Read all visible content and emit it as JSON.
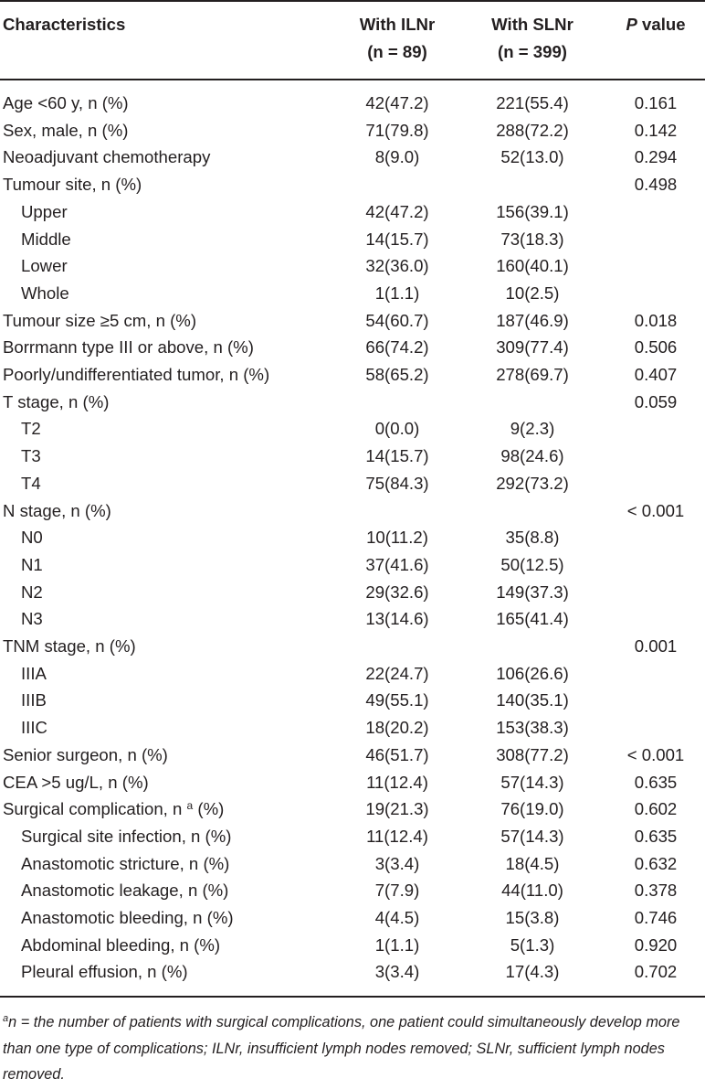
{
  "table": {
    "headers": {
      "characteristics": "Characteristics",
      "group_a_line1": "With ILNr",
      "group_a_line2": "(n = 89)",
      "group_b_line1": "With SLNr",
      "group_b_line2": "(n = 399)",
      "p_italic": "P",
      "p_rest": " value"
    },
    "rows": [
      {
        "label": "Age <60 y, n (%)",
        "indent": false,
        "a": "42(47.2)",
        "b": "221(55.4)",
        "p": "0.161"
      },
      {
        "label": "Sex, male, n (%)",
        "indent": false,
        "a": "71(79.8)",
        "b": "288(72.2)",
        "p": "0.142"
      },
      {
        "label": "Neoadjuvant chemotherapy",
        "indent": false,
        "a": "8(9.0)",
        "b": "52(13.0)",
        "p": "0.294"
      },
      {
        "label": "Tumour site, n (%)",
        "indent": false,
        "a": "",
        "b": "",
        "p": "0.498"
      },
      {
        "label": "Upper",
        "indent": true,
        "a": "42(47.2)",
        "b": "156(39.1)",
        "p": ""
      },
      {
        "label": "Middle",
        "indent": true,
        "a": "14(15.7)",
        "b": "73(18.3)",
        "p": ""
      },
      {
        "label": "Lower",
        "indent": true,
        "a": "32(36.0)",
        "b": "160(40.1)",
        "p": ""
      },
      {
        "label": "Whole",
        "indent": true,
        "a": "1(1.1)",
        "b": "10(2.5)",
        "p": ""
      },
      {
        "label": "Tumour size ≥5 cm, n (%)",
        "indent": false,
        "a": "54(60.7)",
        "b": "187(46.9)",
        "p": "0.018"
      },
      {
        "label": "Borrmann type III or above, n (%)",
        "indent": false,
        "a": "66(74.2)",
        "b": "309(77.4)",
        "p": "0.506"
      },
      {
        "label": "Poorly/undifferentiated tumor, n (%)",
        "indent": false,
        "a": "58(65.2)",
        "b": "278(69.7)",
        "p": "0.407"
      },
      {
        "label": "T stage, n (%)",
        "indent": false,
        "a": "",
        "b": "",
        "p": "0.059"
      },
      {
        "label": "T2",
        "indent": true,
        "a": "0(0.0)",
        "b": "9(2.3)",
        "p": ""
      },
      {
        "label": "T3",
        "indent": true,
        "a": "14(15.7)",
        "b": "98(24.6)",
        "p": ""
      },
      {
        "label": "T4",
        "indent": true,
        "a": "75(84.3)",
        "b": "292(73.2)",
        "p": ""
      },
      {
        "label": "N stage, n (%)",
        "indent": false,
        "a": "",
        "b": "",
        "p": "< 0.001"
      },
      {
        "label": "N0",
        "indent": true,
        "a": "10(11.2)",
        "b": "35(8.8)",
        "p": ""
      },
      {
        "label": "N1",
        "indent": true,
        "a": "37(41.6)",
        "b": "50(12.5)",
        "p": ""
      },
      {
        "label": "N2",
        "indent": true,
        "a": "29(32.6)",
        "b": "149(37.3)",
        "p": ""
      },
      {
        "label": "N3",
        "indent": true,
        "a": "13(14.6)",
        "b": "165(41.4)",
        "p": ""
      },
      {
        "label": "TNM stage, n (%)",
        "indent": false,
        "a": "",
        "b": "",
        "p": "0.001"
      },
      {
        "label": "IIIA",
        "indent": true,
        "a": "22(24.7)",
        "b": "106(26.6)",
        "p": ""
      },
      {
        "label": "IIIB",
        "indent": true,
        "a": "49(55.1)",
        "b": "140(35.1)",
        "p": ""
      },
      {
        "label": "IIIC",
        "indent": true,
        "a": "18(20.2)",
        "b": "153(38.3)",
        "p": ""
      },
      {
        "label": "Senior surgeon, n (%)",
        "indent": false,
        "a": "46(51.7)",
        "b": "308(77.2)",
        "p": "< 0.001"
      },
      {
        "label": "CEA >5 ug/L, n (%)",
        "indent": false,
        "a": "11(12.4)",
        "b": "57(14.3)",
        "p": "0.635"
      },
      {
        "label": "Surgical complication, n",
        "label_sup": "a",
        "label_after": " (%)",
        "indent": false,
        "a": "19(21.3)",
        "b": "76(19.0)",
        "p": "0.602"
      },
      {
        "label": "Surgical site infection, n (%)",
        "indent": true,
        "a": "11(12.4)",
        "b": "57(14.3)",
        "p": "0.635"
      },
      {
        "label": "Anastomotic stricture, n (%)",
        "indent": true,
        "a": "3(3.4)",
        "b": "18(4.5)",
        "p": "0.632"
      },
      {
        "label": "Anastomotic leakage, n (%)",
        "indent": true,
        "a": "7(7.9)",
        "b": "44(11.0)",
        "p": "0.378"
      },
      {
        "label": "Anastomotic bleeding, n (%)",
        "indent": true,
        "a": "4(4.5)",
        "b": "15(3.8)",
        "p": "0.746"
      },
      {
        "label": "Abdominal bleeding, n (%)",
        "indent": true,
        "a": "1(1.1)",
        "b": "5(1.3)",
        "p": "0.920"
      },
      {
        "label": "Pleural effusion, n (%)",
        "indent": true,
        "a": "3(3.4)",
        "b": "17(4.3)",
        "p": "0.702"
      }
    ]
  },
  "footnote": {
    "marker": "a",
    "text": "n = the number of patients with surgical complications, one patient could simultaneously develop more than one type of complications; ILNr, insufficient lymph nodes removed; SLNr, sufficient lymph nodes removed."
  }
}
